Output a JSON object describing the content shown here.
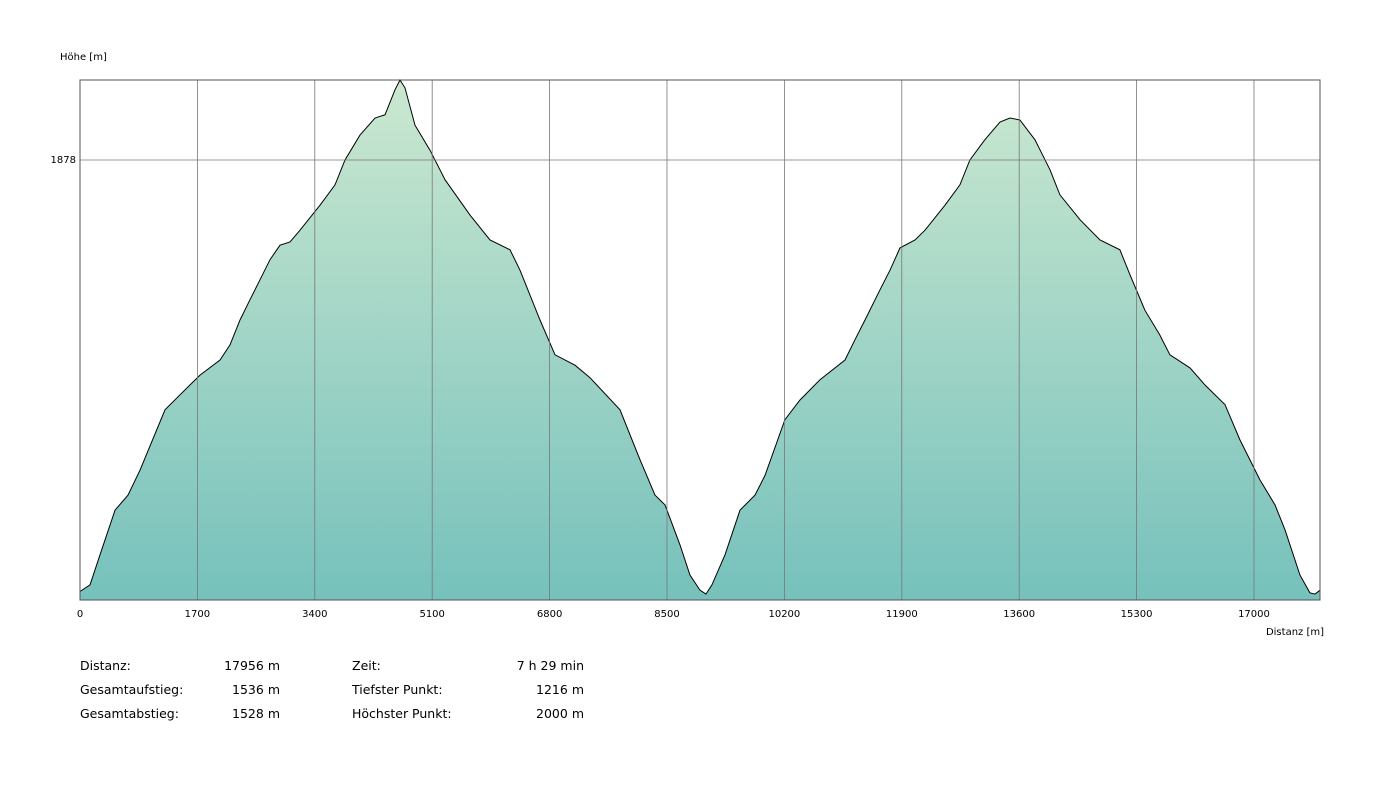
{
  "chart_data": {
    "type": "area",
    "y_label": "Höhe [m]",
    "x_label": "Distanz [m]",
    "x": [
      0,
      145,
      290,
      507,
      695,
      869,
      1231,
      1448,
      1738,
      2027,
      2172,
      2317,
      2462,
      2751,
      2896,
      3041,
      3186,
      3475,
      3692,
      3837,
      4054,
      4272,
      4416,
      4561,
      4634,
      4706,
      4851,
      5068,
      5285,
      5647,
      5937,
      6226,
      6371,
      6661,
      6878,
      7168,
      7385,
      7819,
      8109,
      8326,
      8471,
      8688,
      8833,
      8978,
      9064,
      9151,
      9340,
      9557,
      9774,
      9919,
      10208,
      10426,
      10715,
      11077,
      11222,
      11367,
      11584,
      11729,
      11874,
      12091,
      12236,
      12526,
      12742,
      12887,
      13104,
      13322,
      13466,
      13611,
      13828,
      14046,
      14190,
      14480,
      14770,
      15059,
      15204,
      15421,
      15638,
      15783,
      16073,
      16290,
      16580,
      16798,
      17087,
      17304,
      17449,
      17666,
      17810,
      17883,
      17956
    ],
    "values": [
      1220,
      1230,
      1276,
      1344,
      1367,
      1405,
      1497,
      1520,
      1550,
      1573,
      1596,
      1634,
      1665,
      1726,
      1748,
      1753,
      1771,
      1809,
      1840,
      1878,
      1916,
      1942,
      1947,
      1985,
      2000,
      1988,
      1931,
      1893,
      1848,
      1794,
      1756,
      1741,
      1710,
      1634,
      1581,
      1565,
      1546,
      1497,
      1421,
      1367,
      1352,
      1291,
      1245,
      1222,
      1216,
      1230,
      1276,
      1344,
      1367,
      1397,
      1482,
      1512,
      1543,
      1573,
      1604,
      1634,
      1680,
      1710,
      1744,
      1756,
      1771,
      1809,
      1840,
      1878,
      1909,
      1936,
      1942,
      1939,
      1909,
      1863,
      1825,
      1787,
      1756,
      1741,
      1703,
      1649,
      1611,
      1581,
      1561,
      1535,
      1505,
      1451,
      1390,
      1352,
      1314,
      1245,
      1218,
      1216,
      1222
    ],
    "xlim": [
      0,
      17956
    ],
    "ylim": [
      1207,
      2000
    ],
    "xticks": [
      0,
      1700,
      3400,
      5100,
      6800,
      8500,
      10200,
      11900,
      13600,
      15300,
      17000
    ],
    "yticks": [
      1878
    ],
    "grid": true,
    "fill_top": "#cbe8d0",
    "fill_bottom": "#76c1bc",
    "line_color": "#000000"
  },
  "stats": {
    "rows": [
      [
        "Distanz:",
        "17956 m",
        "Zeit:",
        "7 h 29 min"
      ],
      [
        "Gesamtaufstieg:",
        "1536 m",
        "Tiefster Punkt:",
        "1216 m"
      ],
      [
        "Gesamtabstieg:",
        "1528 m",
        "Höchster Punkt:",
        "2000 m"
      ]
    ]
  }
}
